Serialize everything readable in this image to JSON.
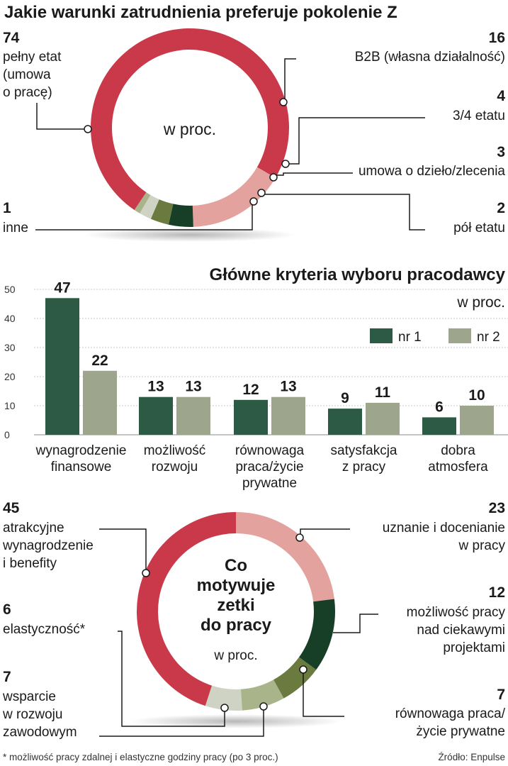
{
  "colors": {
    "red": "#c9394a",
    "pink": "#e3a29d",
    "dark_green": "#173f27",
    "olive": "#6b7a3f",
    "light_olive": "#a9b48a",
    "pale": "#cfd3c3",
    "bar_nr1": "#2d5a45",
    "bar_nr2": "#9da68c"
  },
  "chart_data": [
    {
      "type": "pie",
      "title": "Jakie warunki zatrudnienia preferuje pokolenie Z",
      "center_label": "w proc.",
      "slices": [
        {
          "value": 74,
          "label": [
            "pełny etat",
            "(umowa",
            "o pracę)"
          ]
        },
        {
          "value": 16,
          "label": [
            "B2B (własna działalność)"
          ]
        },
        {
          "value": 4,
          "label": [
            "3/4 etatu"
          ]
        },
        {
          "value": 3,
          "label": [
            "umowa o dzieło/zlecenia"
          ]
        },
        {
          "value": 2,
          "label": [
            "pół etatu"
          ]
        },
        {
          "value": 1,
          "label": [
            "inne"
          ]
        }
      ]
    },
    {
      "type": "bar",
      "title": "Główne kryteria wyboru pracodawcy",
      "subtitle": "w proc.",
      "categories": [
        [
          "wynagrodzenie",
          "finansowe"
        ],
        [
          "możliwość",
          "rozwoju"
        ],
        [
          "równowaga",
          "praca/życie",
          "prywatne"
        ],
        [
          "satysfakcja",
          "z pracy"
        ],
        [
          "dobra",
          "atmosfera"
        ]
      ],
      "series": [
        {
          "name": "nr 1",
          "values": [
            47,
            13,
            12,
            9,
            6
          ]
        },
        {
          "name": "nr 2",
          "values": [
            22,
            13,
            13,
            11,
            10
          ]
        }
      ],
      "ylim": [
        0,
        50
      ],
      "yticks": [
        0,
        10,
        20,
        30,
        40,
        50
      ],
      "grid": true,
      "legend": "top-right"
    },
    {
      "type": "pie",
      "center_title": [
        "Co",
        "motywuje",
        "zetki",
        "do pracy"
      ],
      "center_label": "w proc.",
      "slices": [
        {
          "value": 23,
          "label": [
            "uznanie i docenianie",
            "w pracy"
          ]
        },
        {
          "value": 12,
          "label": [
            "możliwość pracy",
            "nad ciekawymi",
            "projektami"
          ]
        },
        {
          "value": 7,
          "label": [
            "równowaga praca/",
            "życie prywatne"
          ]
        },
        {
          "value": 7,
          "label": [
            "wsparcie",
            "w rozwoju",
            "zawodowym"
          ]
        },
        {
          "value": 6,
          "label": [
            "elastyczność*"
          ]
        },
        {
          "value": 45,
          "label": [
            "atrakcyjne",
            "wynagrodzenie",
            "i benefity"
          ]
        }
      ]
    }
  ],
  "footnote": "* możliwość pracy zdalnej i elastyczne godziny pracy (po 3 proc.)",
  "source": "Źródło: Enpulse"
}
